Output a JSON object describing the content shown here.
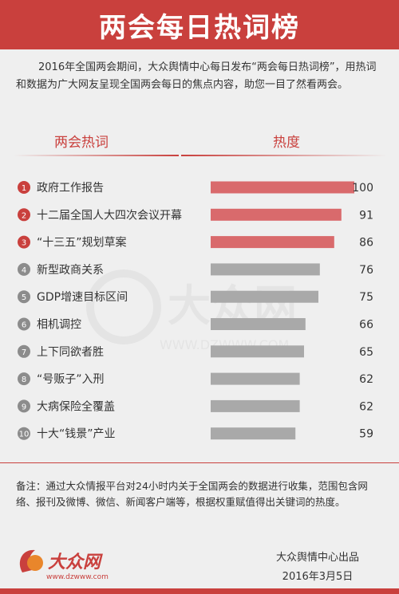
{
  "header": {
    "title": "两会每日热词榜"
  },
  "intro": "2016年全国两会期间，大众舆情中心每日发布“两会每日热词榜”，用热词和数据为广大网友呈现全国两会每日的焦点内容，助您一目了然看两会。",
  "columns": {
    "terms": "两会热词",
    "heat": "热度"
  },
  "colors": {
    "accent": "#c9403d",
    "top_bar": "#d96a6c",
    "other_bar": "#a9a9a9",
    "top_badge": "#c9403d",
    "other_badge": "#8c8c8c"
  },
  "chart_data": {
    "type": "bar",
    "orientation": "horizontal",
    "categories": [
      "政府工作报告",
      "十二届全国人大四次会议开幕",
      "“十三五”规划草案",
      "新型政商关系",
      "GDP增速目标区间",
      "相机调控",
      "上下同欲者胜",
      "“号贩子”入刑",
      "大病保险全覆盖",
      "十大“钱景”产业"
    ],
    "ranks": [
      "1",
      "2",
      "3",
      "4",
      "5",
      "6",
      "7",
      "8",
      "9",
      "10"
    ],
    "values": [
      100,
      91,
      86,
      76,
      75,
      66,
      65,
      62,
      62,
      59
    ],
    "xlim": [
      0,
      100
    ]
  },
  "watermark": {
    "text": "大众网",
    "url": "WWW.DZWWW.COM"
  },
  "note": "备注：通过大众情报平台对24小时内关于全国两会的数据进行收集，范围包含网络、报刊及微博、微信、新闻客户端等，根据权重赋值得出关键词的热度。",
  "logo": {
    "text": "大众网",
    "url": "www.dzwww.com"
  },
  "credit": {
    "line1": "大众舆情中心出品",
    "line2": "2016年3月5日"
  }
}
